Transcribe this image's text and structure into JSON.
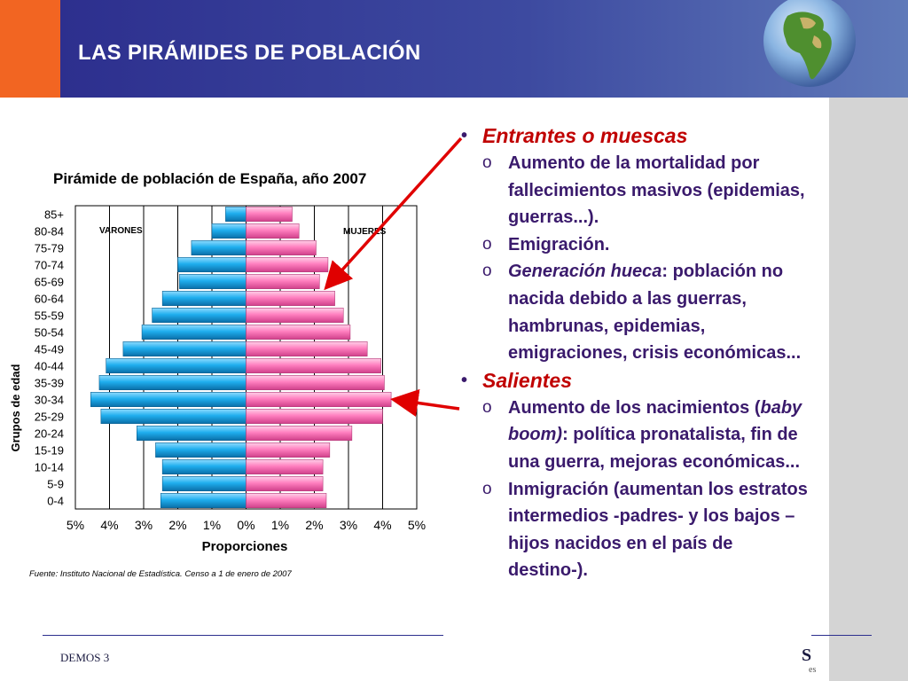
{
  "header": {
    "title": "LAS PIRÁMIDES DE POBLACIÓN"
  },
  "colors": {
    "male": "#1faeee",
    "female": "#ff7fbf",
    "header": "#2d2f8e",
    "accent": "#f26522",
    "bullet_heading": "#c00000",
    "text": "#3a1a6c",
    "arrow": "#e00000"
  },
  "chart_data": {
    "type": "bar",
    "orientation": "horizontal",
    "title": "Pirámide de población de España, año 2007",
    "xlabel": "Proporciones",
    "ylabel": "Grupos de edad",
    "side_labels": {
      "left": "VARONES",
      "right": "MUJERES"
    },
    "categories": [
      "85+",
      "80-84",
      "75-79",
      "70-74",
      "65-69",
      "60-64",
      "55-59",
      "50-54",
      "45-49",
      "40-44",
      "35-39",
      "30-34",
      "25-29",
      "20-24",
      "15-19",
      "10-14",
      "5-9",
      "0-4"
    ],
    "series": [
      {
        "name": "VARONES",
        "values": [
          0.6,
          1.0,
          1.6,
          2.0,
          1.95,
          2.45,
          2.75,
          3.05,
          3.6,
          4.1,
          4.3,
          4.55,
          4.25,
          3.2,
          2.65,
          2.45,
          2.45,
          2.5
        ]
      },
      {
        "name": "MUJERES",
        "values": [
          1.35,
          1.55,
          2.05,
          2.4,
          2.15,
          2.6,
          2.85,
          3.05,
          3.55,
          3.95,
          4.05,
          4.25,
          4.0,
          3.1,
          2.45,
          2.25,
          2.25,
          2.35
        ]
      }
    ],
    "xlim": [
      -5,
      5
    ],
    "xticks": [
      "5%",
      "4%",
      "3%",
      "2%",
      "1%",
      "0%",
      "1%",
      "2%",
      "3%",
      "4%",
      "5%"
    ],
    "grid": true,
    "source": "Fuente: Instituto Nacional de Estadística. Censo a 1 de enero de 2007"
  },
  "bullets": [
    {
      "heading": "Entrantes o muescas",
      "items": [
        {
          "parts": [
            {
              "text": "Aumento de la mortalidad por fallecimientos masivos (epidemias, guerras...).",
              "italic": false
            }
          ]
        },
        {
          "parts": [
            {
              "text": "Emigración.",
              "italic": false
            }
          ]
        },
        {
          "parts": [
            {
              "text": "Generación hueca",
              "italic": true
            },
            {
              "text": ": población no nacida debido a las guerras, hambrunas, epidemias, emigraciones, crisis económicas...",
              "italic": false
            }
          ]
        }
      ]
    },
    {
      "heading": "Salientes",
      "items": [
        {
          "parts": [
            {
              "text": "Aumento de los nacimientos (",
              "italic": false
            },
            {
              "text": "baby boom)",
              "italic": true
            },
            {
              "text": ": política pronatalista, fin de una guerra, mejoras económicas...",
              "italic": false
            }
          ]
        },
        {
          "parts": [
            {
              "text": "Inmigración (aumentan los estratos intermedios -padres- y los bajos –hijos nacidos en el país de destino-).",
              "italic": false
            }
          ]
        }
      ]
    }
  ],
  "footer": {
    "text": "DEMOS 3",
    "logo": "S",
    "logo_sub": "es"
  }
}
